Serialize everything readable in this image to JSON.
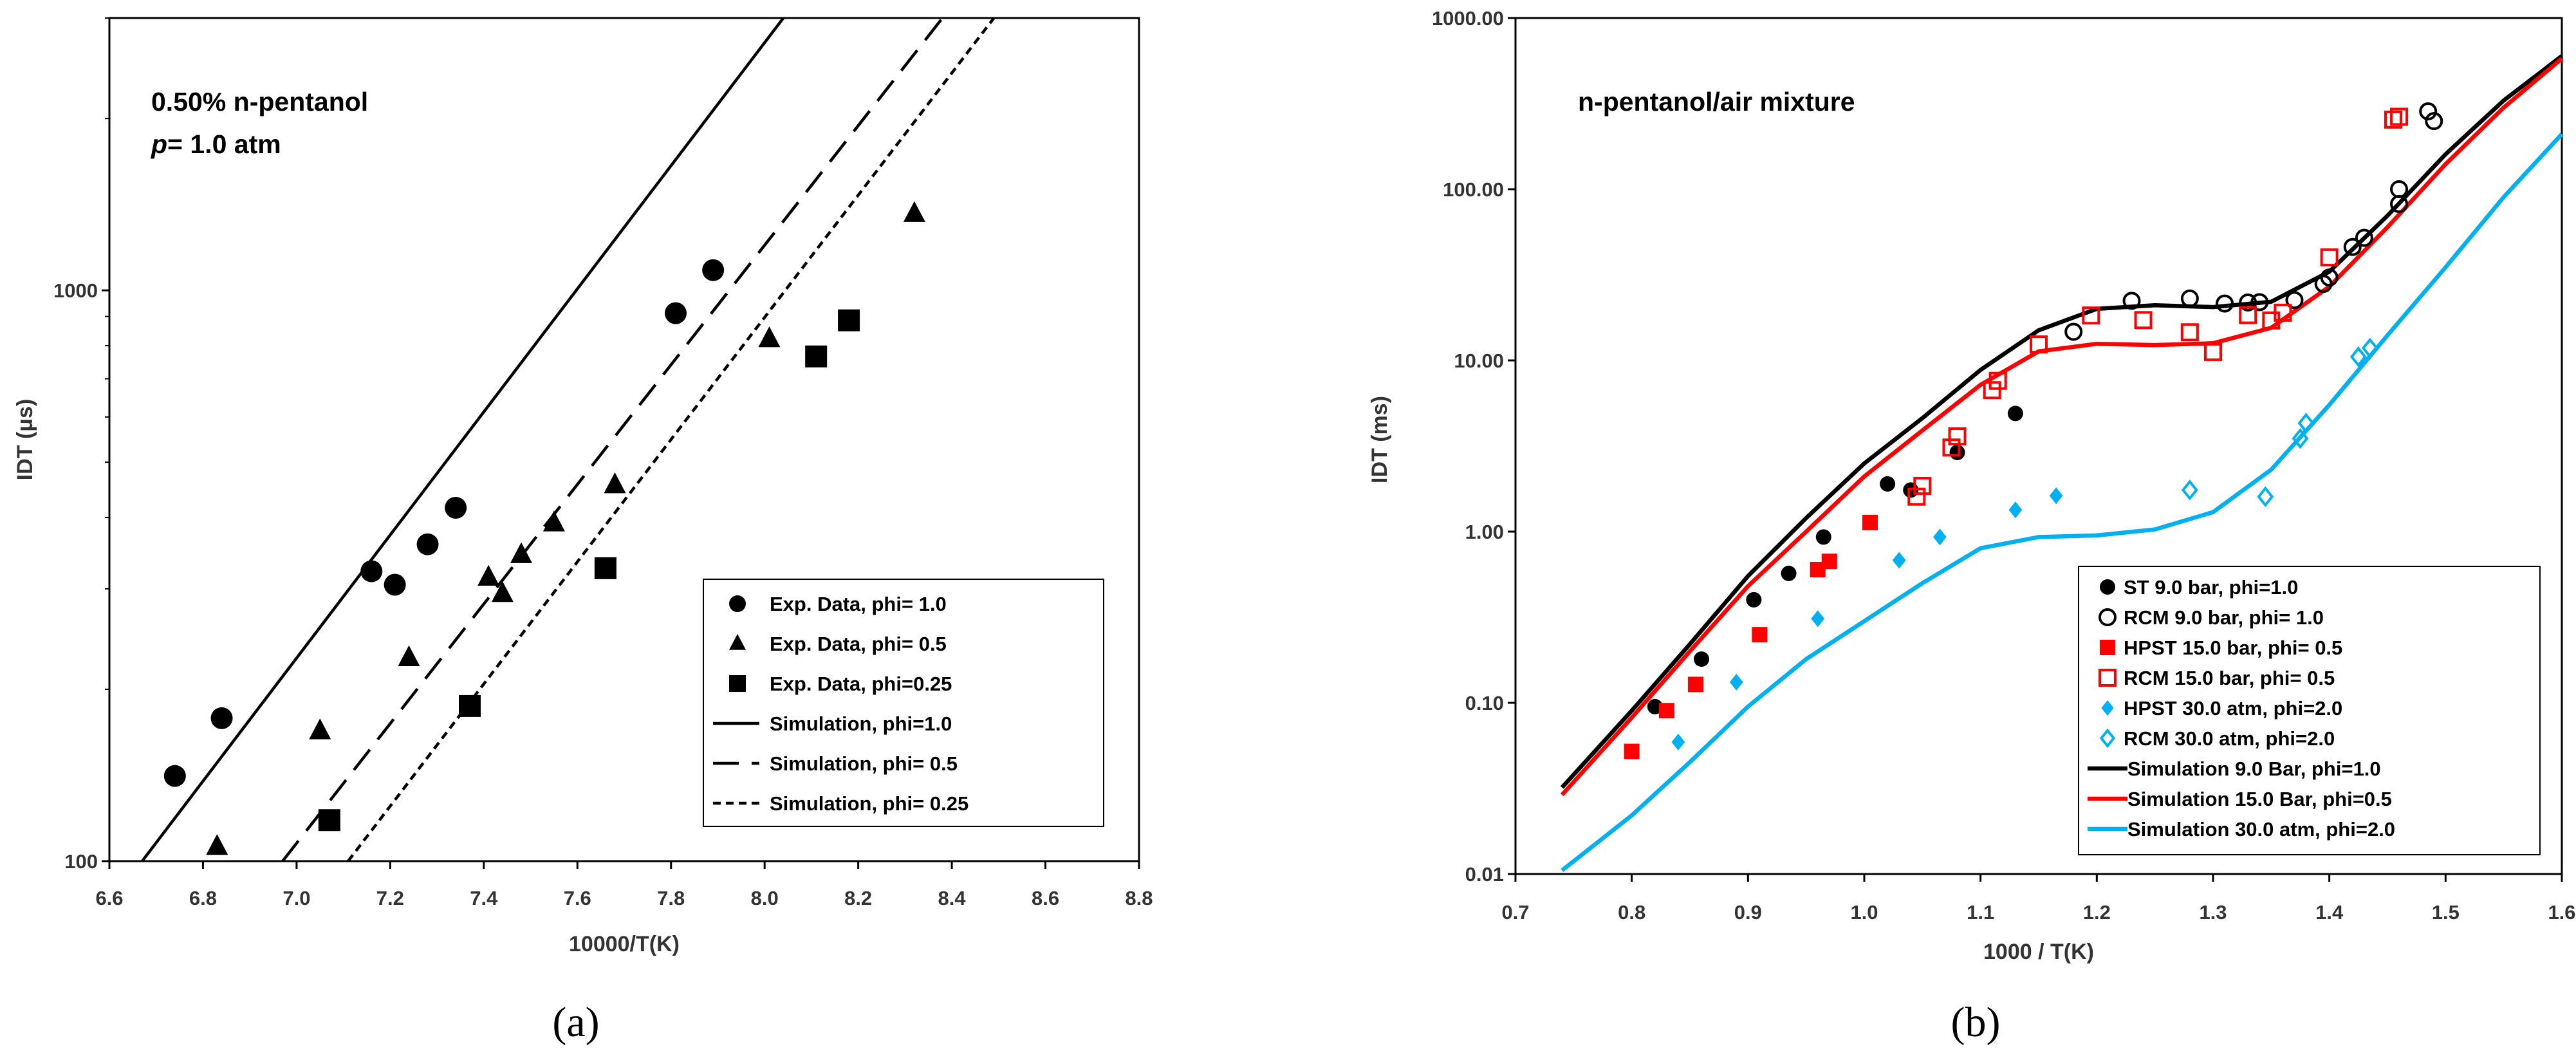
{
  "chart_data": [
    {
      "type": "scatter",
      "panel": "(a)",
      "annotation_line1": "0.50% n-pentanol",
      "annotation_line2_italic": "p",
      "annotation_line2_rest": "= 1.0 atm",
      "xlabel": "10000/T(K)",
      "ylabel": "IDT (μs)",
      "yscale": "log",
      "xlim": [
        6.6,
        8.8
      ],
      "ylim": [
        100,
        3000
      ],
      "xticks": [
        "6.6",
        "6.8",
        "7.0",
        "7.2",
        "7.4",
        "7.6",
        "7.8",
        "8.0",
        "8.2",
        "8.4",
        "8.6",
        "8.8"
      ],
      "yticks": [
        "100",
        "1000"
      ],
      "legend_position": "bottom-right",
      "series": [
        {
          "name": "Exp. Data, phi= 1.0",
          "kind": "marker",
          "marker": "circle",
          "points": [
            [
              6.74,
              141
            ],
            [
              6.84,
              178
            ],
            [
              7.16,
              322
            ],
            [
              7.21,
              305
            ],
            [
              7.28,
              359
            ],
            [
              7.34,
              416
            ],
            [
              7.81,
              912
            ],
            [
              7.89,
              1085
            ]
          ]
        },
        {
          "name": "Exp. Data, phi= 0.5",
          "kind": "marker",
          "marker": "triangle",
          "points": [
            [
              6.83,
              106
            ],
            [
              7.05,
              169
            ],
            [
              7.24,
              227
            ],
            [
              7.41,
              314
            ],
            [
              7.44,
              294
            ],
            [
              7.48,
              344
            ],
            [
              7.55,
              391
            ],
            [
              7.68,
              456
            ],
            [
              8.01,
              822
            ],
            [
              8.32,
              1362
            ]
          ]
        },
        {
          "name": "Exp. Data, phi=0.25",
          "kind": "marker",
          "marker": "square",
          "points": [
            [
              7.07,
              118
            ],
            [
              7.37,
              187
            ],
            [
              7.66,
              326
            ],
            [
              8.11,
              766
            ],
            [
              8.18,
              886
            ]
          ]
        },
        {
          "name": "Simulation, phi=1.0",
          "kind": "line",
          "dash": "solid",
          "points": [
            [
              6.67,
              100
            ],
            [
              8.04,
              3000
            ]
          ]
        },
        {
          "name": "Simulation, phi= 0.5",
          "kind": "line",
          "dash": "long",
          "points": [
            [
              6.97,
              100
            ],
            [
              8.38,
              3000
            ]
          ]
        },
        {
          "name": "Simulation, phi= 0.25",
          "kind": "line",
          "dash": "short",
          "points": [
            [
              7.11,
              100
            ],
            [
              8.49,
              3000
            ]
          ]
        }
      ]
    },
    {
      "type": "scatter",
      "panel": "(b)",
      "annotation": "n-pentanol/air mixture",
      "xlabel": "1000 / T(K)",
      "ylabel": "IDT (ms)",
      "yscale": "log",
      "xlim": [
        0.7,
        1.6
      ],
      "ylim": [
        0.01,
        1000
      ],
      "xticks": [
        "0.7",
        "0.8",
        "0.9",
        "1.0",
        "1.1",
        "1.2",
        "1.3",
        "1.4",
        "1.5",
        "1.6"
      ],
      "yticks": [
        "0.01",
        "0.10",
        "1.00",
        "10.00",
        "100.00",
        "1000.00"
      ],
      "legend_position": "bottom-right",
      "series": [
        {
          "name": "ST 9.0 bar, phi=1.0",
          "kind": "marker",
          "marker": "circle",
          "color": "#000000",
          "filled": true,
          "points": [
            [
              0.82,
              0.095
            ],
            [
              0.86,
              0.18
            ],
            [
              0.905,
              0.4
            ],
            [
              0.935,
              0.57
            ],
            [
              0.965,
              0.93
            ],
            [
              1.02,
              1.9
            ],
            [
              1.04,
              1.75
            ],
            [
              1.08,
              2.9
            ],
            [
              1.13,
              4.9
            ]
          ]
        },
        {
          "name": "RCM 9.0 bar, phi= 1.0",
          "kind": "marker",
          "marker": "circle",
          "color": "#000000",
          "filled": false,
          "points": [
            [
              1.18,
              14.7
            ],
            [
              1.23,
              22.3
            ],
            [
              1.28,
              23
            ],
            [
              1.31,
              21.5
            ],
            [
              1.33,
              21.8
            ],
            [
              1.34,
              21.9
            ],
            [
              1.37,
              22.5
            ],
            [
              1.395,
              28
            ],
            [
              1.4,
              30.5
            ],
            [
              1.42,
              46
            ],
            [
              1.43,
              52
            ],
            [
              1.46,
              82
            ],
            [
              1.46,
              100
            ],
            [
              1.485,
              285
            ],
            [
              1.49,
              250
            ]
          ]
        },
        {
          "name": "HPST 15.0 bar, phi= 0.5",
          "kind": "marker",
          "marker": "square",
          "color": "#ff0000",
          "filled": true,
          "points": [
            [
              0.8,
              0.052
            ],
            [
              0.83,
              0.09
            ],
            [
              0.855,
              0.128
            ],
            [
              0.91,
              0.25
            ],
            [
              0.96,
              0.6
            ],
            [
              0.97,
              0.67
            ],
            [
              1.005,
              1.13
            ]
          ]
        },
        {
          "name": "RCM 15.0 bar, phi= 0.5",
          "kind": "marker",
          "marker": "square",
          "color": "#ff0000",
          "filled": false,
          "points": [
            [
              1.045,
              1.6
            ],
            [
              1.05,
              1.85
            ],
            [
              1.075,
              3.1
            ],
            [
              1.08,
              3.6
            ],
            [
              1.11,
              6.7
            ],
            [
              1.115,
              7.6
            ],
            [
              1.15,
              12.4
            ],
            [
              1.195,
              18.3
            ],
            [
              1.24,
              17.2
            ],
            [
              1.28,
              14.6
            ],
            [
              1.3,
              11.2
            ],
            [
              1.33,
              18.4
            ],
            [
              1.35,
              17.1
            ],
            [
              1.36,
              19
            ],
            [
              1.4,
              40
            ],
            [
              1.455,
              255
            ],
            [
              1.46,
              265
            ]
          ]
        },
        {
          "name": "HPST 30.0 atm, phi=2.0",
          "kind": "marker",
          "marker": "diamond",
          "color": "#00b0f0",
          "filled": true,
          "points": [
            [
              0.84,
              0.059
            ],
            [
              0.89,
              0.132
            ],
            [
              0.96,
              0.31
            ],
            [
              1.03,
              0.68
            ],
            [
              1.065,
              0.93
            ],
            [
              1.13,
              1.34
            ],
            [
              1.165,
              1.62
            ]
          ]
        },
        {
          "name": "RCM 30.0 atm, phi=2.0",
          "kind": "marker",
          "marker": "diamond",
          "color": "#00b0f0",
          "filled": false,
          "points": [
            [
              1.28,
              1.75
            ],
            [
              1.345,
              1.6
            ],
            [
              1.375,
              3.5
            ],
            [
              1.38,
              4.3
            ],
            [
              1.425,
              10.5
            ],
            [
              1.435,
              11.8
            ]
          ]
        },
        {
          "name": "Simulation 9.0 Bar, phi=1.0",
          "kind": "line",
          "color": "#000000",
          "points": [
            [
              0.74,
              0.032
            ],
            [
              0.8,
              0.09
            ],
            [
              0.85,
              0.22
            ],
            [
              0.9,
              0.55
            ],
            [
              0.95,
              1.2
            ],
            [
              1.0,
              2.5
            ],
            [
              1.05,
              4.6
            ],
            [
              1.1,
              8.8
            ],
            [
              1.15,
              15
            ],
            [
              1.2,
              20
            ],
            [
              1.25,
              21
            ],
            [
              1.3,
              20.5
            ],
            [
              1.35,
              22
            ],
            [
              1.4,
              33
            ],
            [
              1.45,
              70
            ],
            [
              1.5,
              160
            ],
            [
              1.55,
              330
            ],
            [
              1.6,
              600
            ]
          ]
        },
        {
          "name": "Simulation 15.0 Bar, phi=0.5",
          "kind": "line",
          "color": "#ff0000",
          "points": [
            [
              0.74,
              0.029
            ],
            [
              0.8,
              0.082
            ],
            [
              0.85,
              0.2
            ],
            [
              0.9,
              0.48
            ],
            [
              0.95,
              1.0
            ],
            [
              1.0,
              2.1
            ],
            [
              1.05,
              3.9
            ],
            [
              1.1,
              7.2
            ],
            [
              1.15,
              11.3
            ],
            [
              1.2,
              12.5
            ],
            [
              1.25,
              12.3
            ],
            [
              1.3,
              12.6
            ],
            [
              1.35,
              15.5
            ],
            [
              1.4,
              27
            ],
            [
              1.45,
              60
            ],
            [
              1.5,
              140
            ],
            [
              1.55,
              300
            ],
            [
              1.6,
              580
            ]
          ]
        },
        {
          "name": "Simulation 30.0 atm, phi=2.0",
          "kind": "line",
          "color": "#00b0f0",
          "points": [
            [
              0.74,
              0.0105
            ],
            [
              0.8,
              0.022
            ],
            [
              0.85,
              0.045
            ],
            [
              0.9,
              0.095
            ],
            [
              0.95,
              0.18
            ],
            [
              1.0,
              0.3
            ],
            [
              1.05,
              0.5
            ],
            [
              1.1,
              0.8
            ],
            [
              1.15,
              0.93
            ],
            [
              1.2,
              0.95
            ],
            [
              1.25,
              1.03
            ],
            [
              1.3,
              1.3
            ],
            [
              1.35,
              2.3
            ],
            [
              1.4,
              5.5
            ],
            [
              1.45,
              14
            ],
            [
              1.5,
              35
            ],
            [
              1.55,
              90
            ],
            [
              1.6,
              210
            ]
          ]
        }
      ]
    }
  ]
}
